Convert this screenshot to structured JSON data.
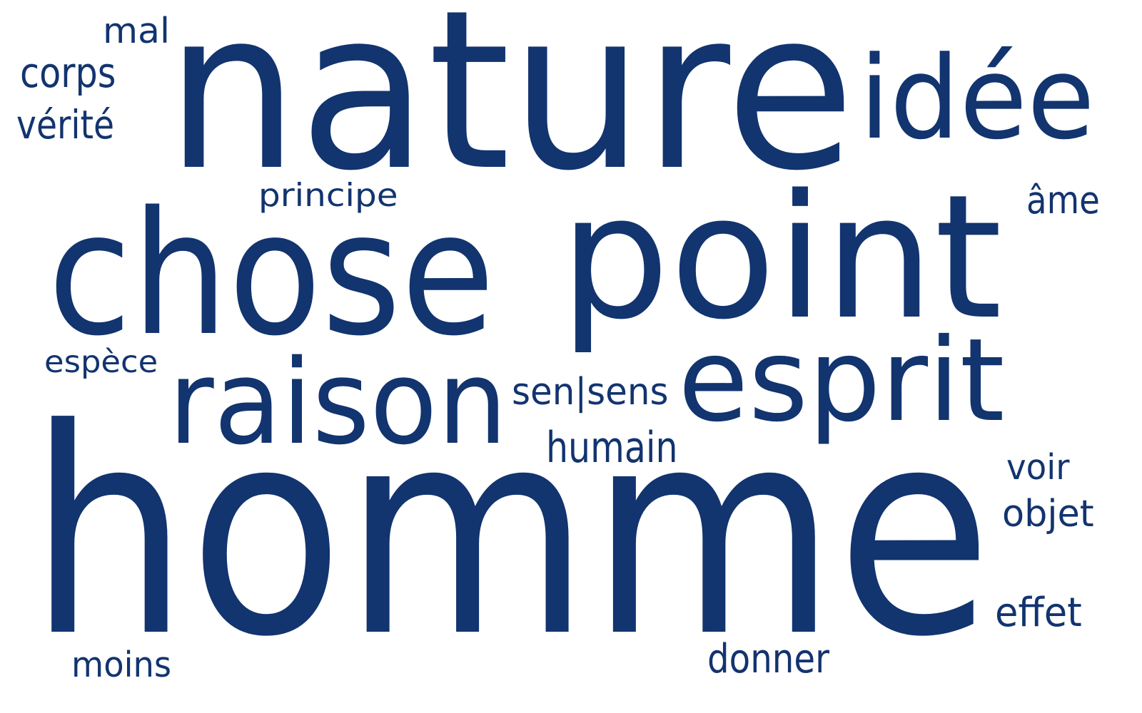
{
  "style": {
    "text_color": "#12346f",
    "background": "#ffffff"
  },
  "words": [
    {
      "text": "homme"
    },
    {
      "text": "nature"
    },
    {
      "text": "point"
    },
    {
      "text": "chose"
    },
    {
      "text": "esprit"
    },
    {
      "text": "idée"
    },
    {
      "text": "raison"
    },
    {
      "text": "sen|sens"
    },
    {
      "text": "humain"
    },
    {
      "text": "principe"
    },
    {
      "text": "âme"
    },
    {
      "text": "mal"
    },
    {
      "text": "corps"
    },
    {
      "text": "vérité"
    },
    {
      "text": "espèce"
    },
    {
      "text": "voir"
    },
    {
      "text": "objet"
    },
    {
      "text": "effet"
    },
    {
      "text": "donner"
    },
    {
      "text": "moins"
    }
  ]
}
